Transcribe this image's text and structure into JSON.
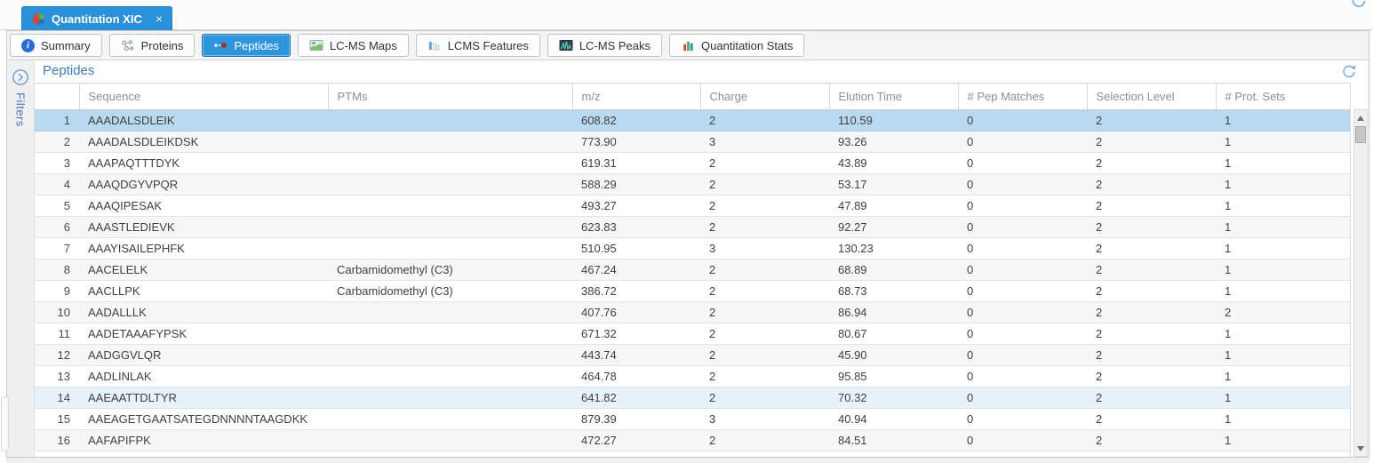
{
  "tab_bar": {
    "tab": {
      "icon": "pie-chart-icon",
      "title": "Quantitation XIC",
      "close": "×"
    }
  },
  "toolbar": {
    "buttons": [
      {
        "label": "Summary",
        "icon": "info-icon",
        "active": false
      },
      {
        "label": "Proteins",
        "icon": "proteins-network-icon",
        "active": false
      },
      {
        "label": "Peptides",
        "icon": "peptides-dots-icon",
        "active": true
      },
      {
        "label": "LC-MS Maps",
        "icon": "lcms-map-icon",
        "active": false
      },
      {
        "label": "LCMS Features",
        "icon": "lcms-features-icon",
        "active": false
      },
      {
        "label": "LC-MS Peaks",
        "icon": "lcms-peaks-icon",
        "active": false
      },
      {
        "label": "Quantitation Stats",
        "icon": "stats-chart-icon",
        "active": false
      }
    ]
  },
  "sidebar": {
    "filters_label": "Filters",
    "icon": "expand-circle-icon"
  },
  "panel": {
    "title": "Peptides",
    "refresh_icon": "refresh-icon"
  },
  "table": {
    "columns": [
      {
        "label": ""
      },
      {
        "label": "Sequence"
      },
      {
        "label": "PTMs"
      },
      {
        "label": "m/z"
      },
      {
        "label": "Charge"
      },
      {
        "label": "Elution Time"
      },
      {
        "label": "# Pep Matches"
      },
      {
        "label": "Selection Level"
      },
      {
        "label": "# Prot. Sets"
      }
    ],
    "rows": [
      {
        "num": "1",
        "sequence": "AAADALSDLEIK",
        "ptms": "",
        "mz": "608.82",
        "charge": "2",
        "elution_time": "110.59",
        "pep_matches": "0",
        "selection_level": "2",
        "prot_sets": "1",
        "state": "selected"
      },
      {
        "num": "2",
        "sequence": "AAADALSDLEIKDSK",
        "ptms": "",
        "mz": "773.90",
        "charge": "3",
        "elution_time": "93.26",
        "pep_matches": "0",
        "selection_level": "2",
        "prot_sets": "1",
        "state": ""
      },
      {
        "num": "3",
        "sequence": "AAAPAQTTTDYK",
        "ptms": "",
        "mz": "619.31",
        "charge": "2",
        "elution_time": "43.89",
        "pep_matches": "0",
        "selection_level": "2",
        "prot_sets": "1",
        "state": ""
      },
      {
        "num": "4",
        "sequence": "AAAQDGYVPQR",
        "ptms": "",
        "mz": "588.29",
        "charge": "2",
        "elution_time": "53.17",
        "pep_matches": "0",
        "selection_level": "2",
        "prot_sets": "1",
        "state": ""
      },
      {
        "num": "5",
        "sequence": "AAAQIPESAK",
        "ptms": "",
        "mz": "493.27",
        "charge": "2",
        "elution_time": "47.89",
        "pep_matches": "0",
        "selection_level": "2",
        "prot_sets": "1",
        "state": ""
      },
      {
        "num": "6",
        "sequence": "AAASTLEDIEVK",
        "ptms": "",
        "mz": "623.83",
        "charge": "2",
        "elution_time": "92.27",
        "pep_matches": "0",
        "selection_level": "2",
        "prot_sets": "1",
        "state": ""
      },
      {
        "num": "7",
        "sequence": "AAAYISAILEPHFK",
        "ptms": "",
        "mz": "510.95",
        "charge": "3",
        "elution_time": "130.23",
        "pep_matches": "0",
        "selection_level": "2",
        "prot_sets": "1",
        "state": ""
      },
      {
        "num": "8",
        "sequence": "AACELELK",
        "ptms": "Carbamidomethyl (C3)",
        "mz": "467.24",
        "charge": "2",
        "elution_time": "68.89",
        "pep_matches": "0",
        "selection_level": "2",
        "prot_sets": "1",
        "state": ""
      },
      {
        "num": "9",
        "sequence": "AACLLPK",
        "ptms": "Carbamidomethyl (C3)",
        "mz": "386.72",
        "charge": "2",
        "elution_time": "68.73",
        "pep_matches": "0",
        "selection_level": "2",
        "prot_sets": "1",
        "state": ""
      },
      {
        "num": "10",
        "sequence": "AADALLLK",
        "ptms": "",
        "mz": "407.76",
        "charge": "2",
        "elution_time": "86.94",
        "pep_matches": "0",
        "selection_level": "2",
        "prot_sets": "2",
        "state": ""
      },
      {
        "num": "11",
        "sequence": "AADETAAAFYPSK",
        "ptms": "",
        "mz": "671.32",
        "charge": "2",
        "elution_time": "80.67",
        "pep_matches": "0",
        "selection_level": "2",
        "prot_sets": "1",
        "state": ""
      },
      {
        "num": "12",
        "sequence": "AADGGVLQR",
        "ptms": "",
        "mz": "443.74",
        "charge": "2",
        "elution_time": "45.90",
        "pep_matches": "0",
        "selection_level": "2",
        "prot_sets": "1",
        "state": ""
      },
      {
        "num": "13",
        "sequence": "AADLINLAK",
        "ptms": "",
        "mz": "464.78",
        "charge": "2",
        "elution_time": "95.85",
        "pep_matches": "0",
        "selection_level": "2",
        "prot_sets": "1",
        "state": ""
      },
      {
        "num": "14",
        "sequence": "AAEAATTDLTYR",
        "ptms": "",
        "mz": "641.82",
        "charge": "2",
        "elution_time": "70.32",
        "pep_matches": "0",
        "selection_level": "2",
        "prot_sets": "1",
        "state": "highlight"
      },
      {
        "num": "15",
        "sequence": "AAEAGETGAATSATEGDNNNNTAAGDKK",
        "ptms": "",
        "mz": "879.39",
        "charge": "3",
        "elution_time": "40.94",
        "pep_matches": "0",
        "selection_level": "2",
        "prot_sets": "1",
        "state": ""
      },
      {
        "num": "16",
        "sequence": "AAFAPIFPK",
        "ptms": "",
        "mz": "472.27",
        "charge": "2",
        "elution_time": "84.51",
        "pep_matches": "0",
        "selection_level": "2",
        "prot_sets": "1",
        "state": ""
      }
    ]
  },
  "colors": {
    "accent_blue": "#2a91d8",
    "selected_row": "#b9d9f1",
    "highlight_row": "#e8f2fb",
    "title_blue": "#3e7eb8",
    "header_text": "#8f8f8f"
  }
}
